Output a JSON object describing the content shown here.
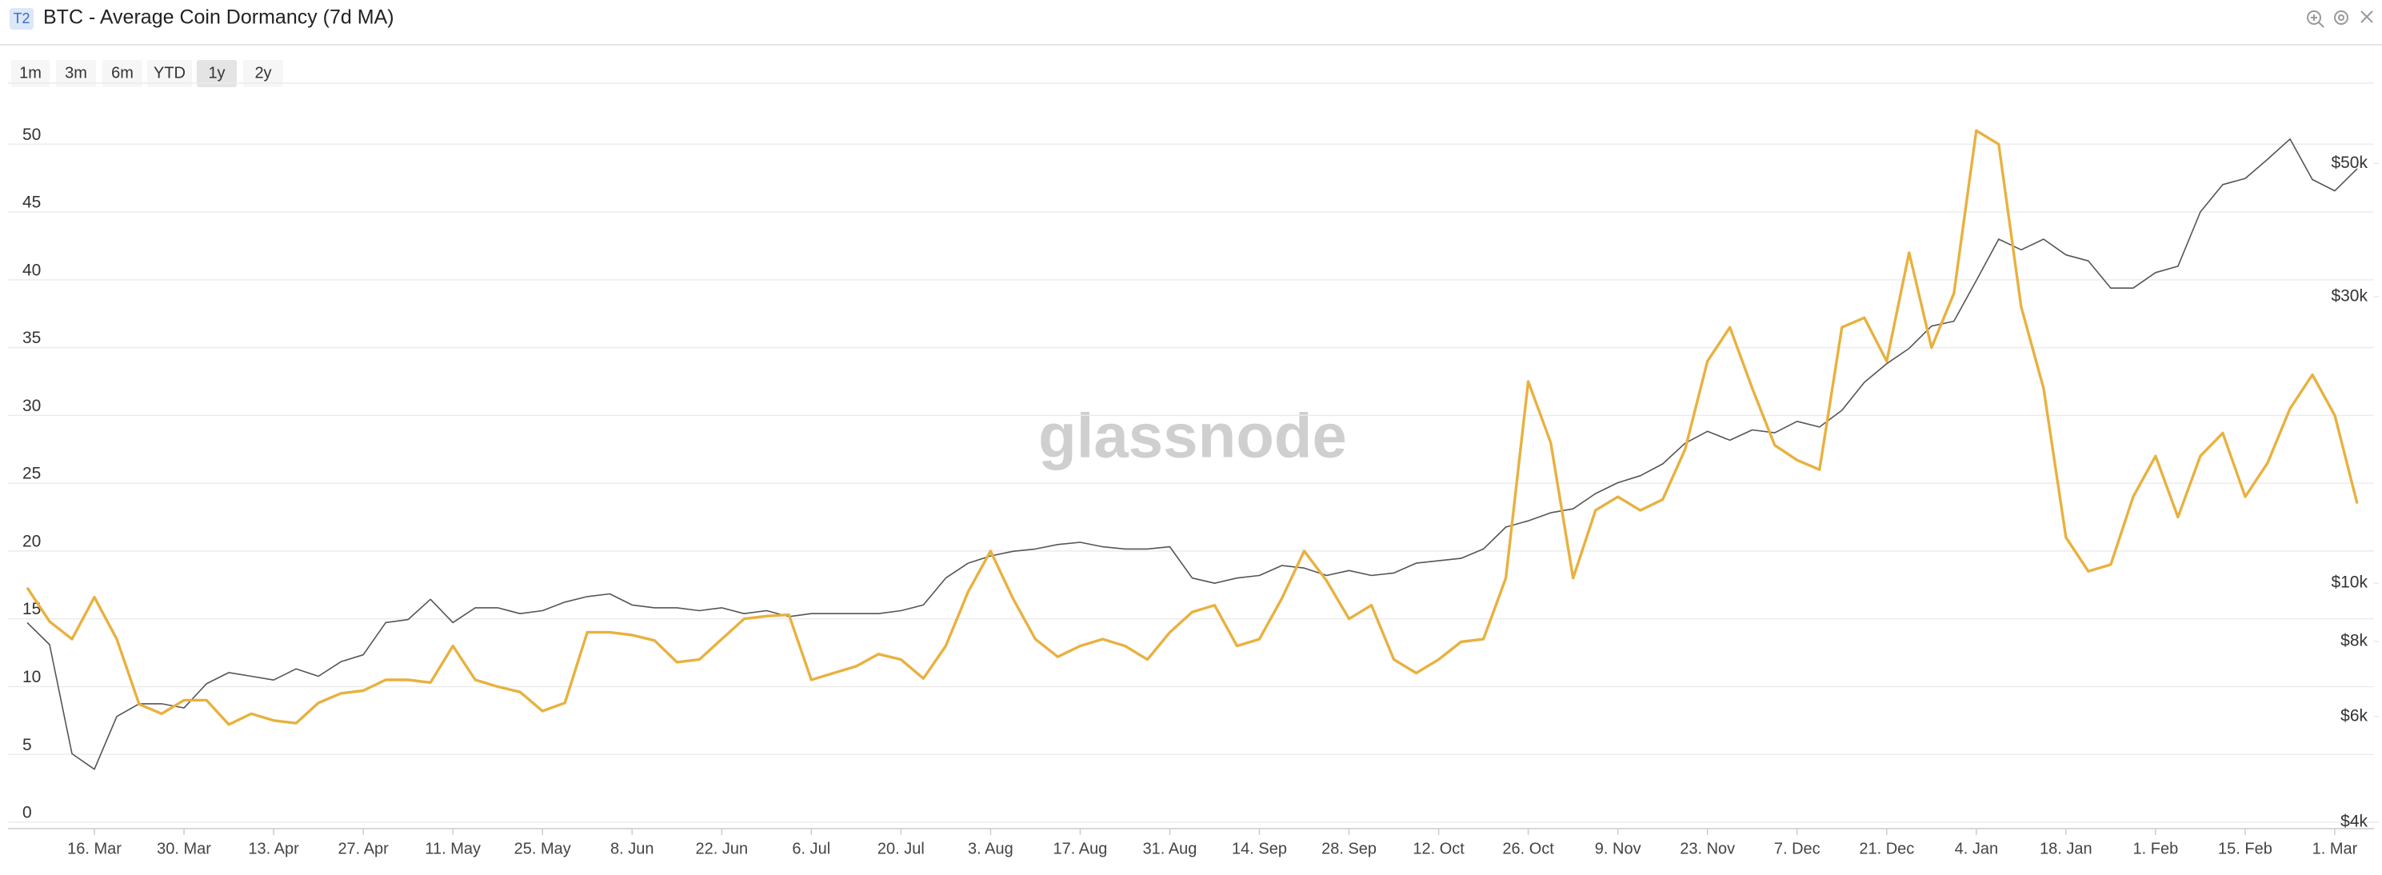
{
  "header": {
    "badge": "T2",
    "title": "BTC - Average Coin Dormancy (7d MA)"
  },
  "range_buttons": [
    "1m",
    "3m",
    "6m",
    "YTD",
    "1y",
    "2y"
  ],
  "active_range": 4,
  "watermark": "glassnode",
  "chart_data": {
    "type": "line",
    "categories": [
      null,
      null,
      null,
      "16. Mar",
      null,
      null,
      null,
      "30. Mar",
      null,
      null,
      null,
      "13. Apr",
      null,
      null,
      null,
      "27. Apr",
      null,
      null,
      null,
      "11. May",
      null,
      null,
      null,
      "25. May",
      null,
      null,
      null,
      "8. Jun",
      null,
      null,
      null,
      "22. Jun",
      null,
      null,
      null,
      "6. Jul",
      null,
      null,
      null,
      "20. Jul",
      null,
      null,
      null,
      "3. Aug",
      null,
      null,
      null,
      "17. Aug",
      null,
      null,
      null,
      "31. Aug",
      null,
      null,
      null,
      "14. Sep",
      null,
      null,
      null,
      "28. Sep",
      null,
      null,
      null,
      "12. Oct",
      null,
      null,
      null,
      "26. Oct",
      null,
      null,
      null,
      "9. Nov",
      null,
      null,
      null,
      "23. Nov",
      null,
      null,
      null,
      "7. Dec",
      null,
      null,
      null,
      "21. Dec",
      null,
      null,
      null,
      "4. Jan",
      null,
      null,
      null,
      "18. Jan",
      null,
      null,
      null,
      "1. Feb",
      null,
      null,
      null,
      "15. Feb",
      null,
      null,
      null,
      "1. Mar",
      null
    ],
    "series": [
      {
        "color": "#e8b13f",
        "axis": "y",
        "values": [
          17.3,
          14.8,
          13.5,
          16.6,
          13.5,
          8.7,
          8,
          9,
          9,
          7.2,
          8,
          7.5,
          7.3,
          8.8,
          9.5,
          9.7,
          10.5,
          10.5,
          10.3,
          13,
          10.5,
          10,
          9.6,
          8.2,
          8.8,
          14,
          14,
          13.8,
          13.4,
          11.8,
          12,
          13.5,
          15,
          15.2,
          15.3,
          10.5,
          11,
          11.5,
          12.4,
          12,
          10.6,
          13,
          17,
          20,
          16.5,
          13.5,
          12.2,
          13,
          13.5,
          13,
          12,
          14,
          15.5,
          16,
          13,
          13.5,
          16.5,
          20,
          17.8,
          15,
          16,
          12,
          11,
          12,
          13.3,
          13.5,
          18,
          32.5,
          28,
          18,
          23,
          24,
          23,
          23.8,
          27.5,
          34,
          36.5,
          32,
          27.8,
          26.7,
          26,
          36.5,
          37.2,
          34,
          42,
          35,
          39,
          51,
          50,
          38,
          32,
          21,
          18.5,
          19,
          24,
          27,
          22.5,
          27,
          28.7,
          24,
          26.5,
          30.5,
          33,
          30,
          23.5
        ]
      },
      {
        "color": "#555555",
        "axis": "y2",
        "values": [
          8600,
          7900,
          5200,
          4900,
          6000,
          6300,
          6300,
          6200,
          6800,
          7100,
          7000,
          6900,
          7200,
          7000,
          7400,
          7600,
          8600,
          8700,
          9400,
          8600,
          9100,
          9100,
          8900,
          9000,
          9300,
          9500,
          9600,
          9200,
          9100,
          9100,
          9000,
          9100,
          8900,
          9000,
          8800,
          8900,
          8900,
          8900,
          8900,
          9000,
          9200,
          10200,
          10800,
          11100,
          11300,
          11400,
          11600,
          11700,
          11500,
          11400,
          11400,
          11500,
          10200,
          10000,
          10200,
          10300,
          10700,
          10600,
          10300,
          10500,
          10300,
          10400,
          10800,
          10900,
          11000,
          11400,
          12400,
          12700,
          13100,
          13300,
          14100,
          14700,
          15100,
          15800,
          17100,
          17900,
          17300,
          18000,
          17800,
          18600,
          18200,
          19400,
          21600,
          23200,
          24600,
          26800,
          27300,
          31900,
          37400,
          35900,
          37400,
          35200,
          34400,
          31000,
          31000,
          32900,
          33700,
          41500,
          46100,
          47200,
          50800,
          54900,
          47000,
          45000,
          49000
        ]
      }
    ],
    "ylim": [
      0,
      54.5
    ],
    "yticks": [
      0,
      5,
      10,
      15,
      20,
      25,
      30,
      35,
      40,
      45,
      50
    ],
    "y2lim": [
      4000,
      68000
    ],
    "y2scale": "log",
    "y2ticks": [
      {
        "value": 4000,
        "label": "$4k"
      },
      {
        "value": 6000,
        "label": "$6k"
      },
      {
        "value": 8000,
        "label": "$8k"
      },
      {
        "value": 10000,
        "label": "$10k"
      },
      {
        "value": 30000,
        "label": "$30k"
      },
      {
        "value": 50000,
        "label": "$50k"
      }
    ],
    "grid": true
  }
}
